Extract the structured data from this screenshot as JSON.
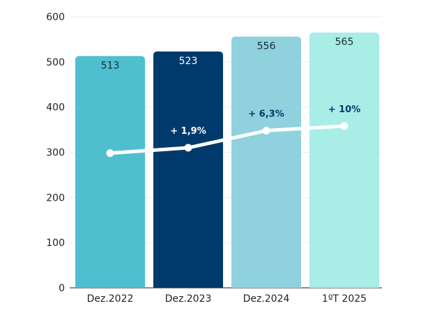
{
  "chart_data": {
    "type": "bar",
    "categories": [
      "Dez.2022",
      "Dez.2023",
      "Dez.2024",
      "1ºT 2025"
    ],
    "values": [
      513,
      523,
      556,
      565
    ],
    "value_labels": [
      "513",
      "523",
      "556",
      "565"
    ],
    "ylim": [
      0,
      600
    ],
    "yticks": [
      0,
      100,
      200,
      300,
      400,
      500,
      600
    ],
    "grid": true,
    "bar_colors": [
      "#4fbfcf",
      "#003a6c",
      "#8fd2dd",
      "#a8ede6"
    ],
    "value_label_colors": [
      "#1a2a33",
      "#ffffff",
      "#1a2a33",
      "#1a2a33"
    ],
    "line": {
      "values": [
        298,
        310,
        348,
        358
      ],
      "color": "#ffffff",
      "labels": [
        "",
        "+ 1,9%",
        "+ 6,3%",
        "+ 10%"
      ],
      "label_colors": [
        "",
        "#ffffff",
        "#003a6c",
        "#003a6c"
      ]
    }
  }
}
